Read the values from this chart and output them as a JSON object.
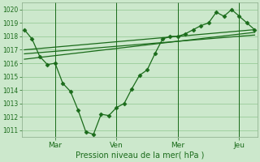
{
  "xlabel": "Pression niveau de la mer( hPa )",
  "bg_color": "#cce8cc",
  "grid_color": "#99cc99",
  "line_color": "#1a6b1a",
  "ylim": [
    1010.5,
    1020.5
  ],
  "yticks": [
    1011,
    1012,
    1013,
    1014,
    1015,
    1016,
    1017,
    1018,
    1019,
    1020
  ],
  "xtick_positions": [
    24,
    72,
    120,
    168
  ],
  "xtick_labels": [
    "Mar",
    "Ven",
    "Mer",
    "Jeu"
  ],
  "vline_positions": [
    24,
    72,
    120,
    168
  ],
  "main_series_x": [
    0,
    6,
    12,
    18,
    24,
    30,
    36,
    42,
    48,
    54,
    60,
    66,
    72,
    78,
    84,
    90,
    96,
    102,
    108,
    114,
    120,
    126,
    132,
    138,
    144,
    150,
    156,
    162,
    168,
    174,
    180
  ],
  "main_series_y": [
    1018.5,
    1017.8,
    1016.5,
    1015.9,
    1016.0,
    1014.5,
    1013.9,
    1012.5,
    1010.9,
    1010.7,
    1012.2,
    1012.1,
    1012.7,
    1013.0,
    1014.1,
    1015.1,
    1015.5,
    1016.7,
    1017.8,
    1018.0,
    1018.0,
    1018.2,
    1018.5,
    1018.8,
    1019.0,
    1019.8,
    1019.5,
    1020.0,
    1019.5,
    1019.0,
    1018.5
  ],
  "trend1_x": [
    0,
    180
  ],
  "trend1_y": [
    1016.3,
    1018.3
  ],
  "trend2_x": [
    0,
    180
  ],
  "trend2_y": [
    1016.7,
    1018.1
  ],
  "trend3_x": [
    0,
    180
  ],
  "trend3_y": [
    1017.0,
    1018.5
  ],
  "xlim": [
    -2,
    182
  ]
}
